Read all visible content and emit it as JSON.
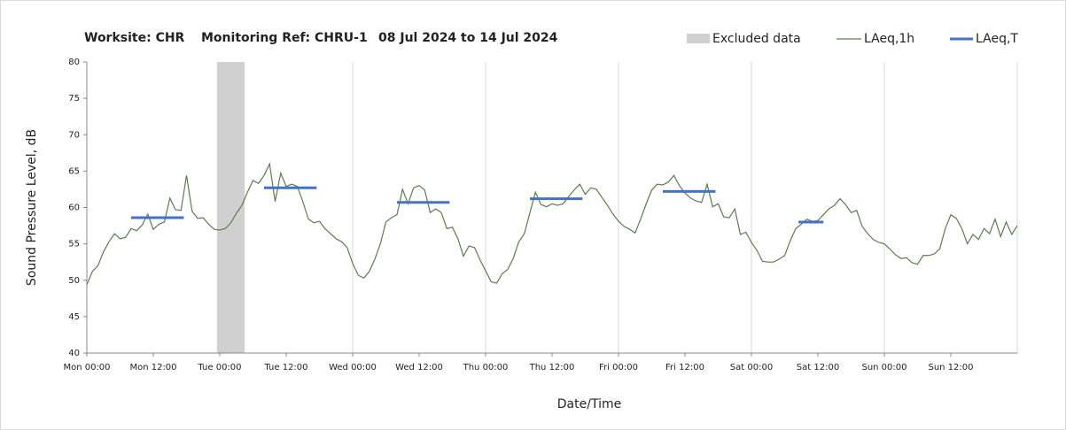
{
  "chart_data": {
    "type": "line",
    "title": [
      "Worksite: CHR",
      "Monitoring Ref: CHRU-1",
      "08 Jul 2024 to 14 Jul 2024"
    ],
    "x_label": "Date/Time",
    "y_label": "Sound Pressure Level, dB",
    "xlim": [
      0,
      168
    ],
    "ylim": [
      40,
      80
    ],
    "yticks": [
      40,
      45,
      50,
      55,
      60,
      65,
      70,
      75,
      80
    ],
    "xticks": [
      {
        "value": 0,
        "label": "Mon 00:00"
      },
      {
        "value": 12,
        "label": "Mon 12:00"
      },
      {
        "value": 24,
        "label": "Tue 00:00"
      },
      {
        "value": 36,
        "label": "Tue 12:00"
      },
      {
        "value": 48,
        "label": "Wed 00:00"
      },
      {
        "value": 60,
        "label": "Wed 12:00"
      },
      {
        "value": 72,
        "label": "Thu 00:00"
      },
      {
        "value": 84,
        "label": "Thu 12:00"
      },
      {
        "value": 96,
        "label": "Fri 00:00"
      },
      {
        "value": 108,
        "label": "Fri 12:00"
      },
      {
        "value": 120,
        "label": "Sat 00:00"
      },
      {
        "value": 132,
        "label": "Sat 12:00"
      },
      {
        "value": 144,
        "label": "Sun 00:00"
      },
      {
        "value": 156,
        "label": "Sun 12:00"
      }
    ],
    "xgrid": [
      24,
      48,
      72,
      96,
      120,
      144,
      168
    ],
    "excluded": {
      "name": "Excluded data",
      "color": "#d0d0d0",
      "x": [
        23.5,
        28.5
      ]
    },
    "x": [
      0,
      1,
      2,
      3,
      4,
      5,
      6,
      7,
      8,
      9,
      10,
      11,
      12,
      13,
      14,
      15,
      16,
      17,
      18,
      19,
      20,
      21,
      22,
      23,
      24,
      25,
      26,
      27,
      28,
      29,
      30,
      31,
      32,
      33,
      34,
      35,
      36,
      37,
      38,
      39,
      40,
      41,
      42,
      43,
      44,
      45,
      46,
      47,
      48,
      49,
      50,
      51,
      52,
      53,
      54,
      55,
      56,
      57,
      58,
      59,
      60,
      61,
      62,
      63,
      64,
      65,
      66,
      67,
      68,
      69,
      70,
      71,
      72,
      73,
      74,
      75,
      76,
      77,
      78,
      79,
      80,
      81,
      82,
      83,
      84,
      85,
      86,
      87,
      88,
      89,
      90,
      91,
      92,
      93,
      94,
      95,
      96,
      97,
      98,
      99,
      100,
      101,
      102,
      103,
      104,
      105,
      106,
      107,
      108,
      109,
      110,
      111,
      112,
      113,
      114,
      115,
      116,
      117,
      118,
      119,
      120,
      121,
      122,
      123,
      124,
      125,
      126,
      127,
      128,
      129,
      130,
      131,
      132,
      133,
      134,
      135,
      136,
      137,
      138,
      139,
      140,
      141,
      142,
      143,
      144,
      145,
      146,
      147,
      148,
      149,
      150,
      151,
      152,
      153,
      154,
      155,
      156,
      157,
      158,
      159,
      160,
      161,
      162,
      163,
      164,
      165,
      166,
      167,
      168
    ],
    "series": [
      {
        "name": "LAeq,1h",
        "color": "#5e7a4f",
        "values": [
          49.4,
          51.2,
          52,
          53.9,
          55.3,
          56.4,
          55.7,
          55.9,
          57.1,
          56.8,
          57.6,
          59.1,
          57,
          57.7,
          58,
          61.3,
          59.7,
          59.6,
          64.4,
          59.5,
          58.5,
          58.6,
          57.7,
          57,
          56.9,
          57.1,
          57.9,
          59.2,
          60.3,
          62.1,
          63.7,
          63.3,
          64.4,
          66,
          60.8,
          64.7,
          62.9,
          63.2,
          62.9,
          60.8,
          58.4,
          57.9,
          58.1,
          57.1,
          56.4,
          55.7,
          55.3,
          54.5,
          52.3,
          50.7,
          50.3,
          51.2,
          52.9,
          55,
          58,
          58.6,
          59,
          62.5,
          60.5,
          62.7,
          63,
          62.4,
          59.3,
          59.8,
          59.3,
          57.1,
          57.3,
          55.7,
          53.3,
          54.7,
          54.5,
          52.8,
          51.3,
          49.8,
          49.6,
          50.9,
          51.5,
          53,
          55.3,
          56.4,
          59.3,
          62.1,
          60.4,
          60.1,
          60.5,
          60.3,
          60.5,
          61.5,
          62.4,
          63.2,
          61.8,
          62.7,
          62.5,
          61.4,
          60.3,
          59.1,
          58.1,
          57.4,
          57,
          56.5,
          58.4,
          60.5,
          62.4,
          63.2,
          63.1,
          63.5,
          64.4,
          63,
          62,
          61.3,
          60.9,
          60.7,
          63.2,
          60.1,
          60.5,
          58.7,
          58.6,
          59.8,
          56.3,
          56.6,
          55.2,
          54.1,
          52.6,
          52.5,
          52.5,
          52.9,
          53.4,
          55.4,
          57.1,
          57.7,
          58.4,
          58.1,
          58.2,
          59,
          59.8,
          60.3,
          61.2,
          60.4,
          59.3,
          59.6,
          57.4,
          56.4,
          55.6,
          55.2,
          55,
          54.3,
          53.5,
          53,
          53.1,
          52.4,
          52.2,
          53.4,
          53.4,
          53.6,
          54.3,
          57.1,
          59,
          58.5,
          57.1,
          55,
          56.3,
          55.6,
          57.1,
          56.4,
          58.4,
          56,
          58,
          56.3,
          57.5
        ]
      }
    ],
    "segments": {
      "name": "LAeq,T",
      "color": "#4472c4",
      "items": [
        {
          "x": [
            8,
            17.5
          ],
          "value": 58.6
        },
        {
          "x": [
            32,
            41.5
          ],
          "value": 62.7
        },
        {
          "x": [
            56,
            65.5
          ],
          "value": 60.7
        },
        {
          "x": [
            80,
            89.5
          ],
          "value": 61.2
        },
        {
          "x": [
            104,
            113.5
          ],
          "value": 62.2
        },
        {
          "x": [
            128.5,
            133
          ],
          "value": 58
        }
      ]
    }
  }
}
